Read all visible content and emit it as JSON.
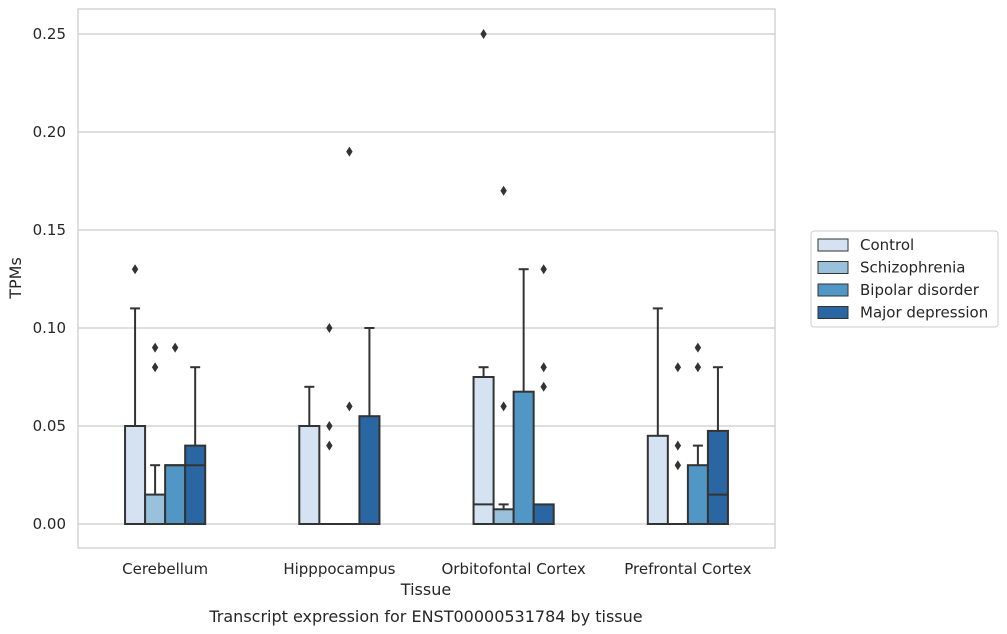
{
  "chart_data": {
    "type": "boxplot",
    "title": "",
    "caption": "Transcript expression for ENST00000531784 by tissue",
    "xlabel": "Tissue",
    "ylabel": "TPMs",
    "ylim": [
      -0.012,
      0.263
    ],
    "yticks": [
      "0.00",
      "0.05",
      "0.10",
      "0.15",
      "0.20",
      "0.25"
    ],
    "grid": "horizontal",
    "legend_placement": "right",
    "categories": [
      "Cerebellum",
      "Hipppocampus",
      "Orbitofontal Cortex",
      "Prefrontal Cortex"
    ],
    "series": [
      {
        "name": "Control",
        "color": "#d4e2f1",
        "boxes": [
          {
            "q1": 0.0,
            "median": 0.0,
            "q3": 0.05,
            "whisker_low": 0.0,
            "whisker_high": 0.11,
            "outliers": [
              0.13
            ]
          },
          {
            "q1": 0.0,
            "median": 0.0,
            "q3": 0.05,
            "whisker_low": 0.0,
            "whisker_high": 0.07,
            "outliers": []
          },
          {
            "q1": 0.0,
            "median": 0.01,
            "q3": 0.075,
            "whisker_low": 0.0,
            "whisker_high": 0.08,
            "outliers": [
              0.25
            ]
          },
          {
            "q1": 0.0,
            "median": 0.0,
            "q3": 0.045,
            "whisker_low": 0.0,
            "whisker_high": 0.11,
            "outliers": []
          }
        ]
      },
      {
        "name": "Schizophrenia",
        "color": "#9ac1dc",
        "boxes": [
          {
            "q1": 0.0,
            "median": 0.0,
            "q3": 0.015,
            "whisker_low": 0.0,
            "whisker_high": 0.03,
            "outliers": [
              0.08,
              0.09
            ]
          },
          {
            "q1": 0.0,
            "median": 0.0,
            "q3": 0.0,
            "whisker_low": 0.0,
            "whisker_high": 0.0,
            "outliers": [
              0.04,
              0.05,
              0.1
            ]
          },
          {
            "q1": 0.0,
            "median": 0.0,
            "q3": 0.0075,
            "whisker_low": 0.0,
            "whisker_high": 0.01,
            "outliers": [
              0.06,
              0.17
            ]
          },
          {
            "q1": 0.0,
            "median": 0.0,
            "q3": 0.0,
            "whisker_low": 0.0,
            "whisker_high": 0.0,
            "outliers": [
              0.03,
              0.04,
              0.08
            ]
          }
        ]
      },
      {
        "name": "Bipolar disorder",
        "color": "#5097c6",
        "boxes": [
          {
            "q1": 0.0,
            "median": 0.03,
            "q3": 0.03,
            "whisker_low": 0.0,
            "whisker_high": 0.03,
            "outliers": [
              0.09
            ]
          },
          {
            "q1": 0.0,
            "median": 0.0,
            "q3": 0.0,
            "whisker_low": 0.0,
            "whisker_high": 0.0,
            "outliers": [
              0.06,
              0.19
            ]
          },
          {
            "q1": 0.0,
            "median": 0.0,
            "q3": 0.0675,
            "whisker_low": 0.0,
            "whisker_high": 0.13,
            "outliers": []
          },
          {
            "q1": 0.0,
            "median": 0.0,
            "q3": 0.03,
            "whisker_low": 0.0,
            "whisker_high": 0.04,
            "outliers": [
              0.08,
              0.09
            ]
          }
        ]
      },
      {
        "name": "Major depression",
        "color": "#2a66a2",
        "boxes": [
          {
            "q1": 0.0,
            "median": 0.03,
            "q3": 0.04,
            "whisker_low": 0.0,
            "whisker_high": 0.08,
            "outliers": []
          },
          {
            "q1": 0.0,
            "median": 0.0,
            "q3": 0.055,
            "whisker_low": 0.0,
            "whisker_high": 0.1,
            "outliers": []
          },
          {
            "q1": 0.0,
            "median": 0.0,
            "q3": 0.01,
            "whisker_low": 0.0,
            "whisker_high": 0.01,
            "outliers": [
              0.07,
              0.08,
              0.13
            ]
          },
          {
            "q1": 0.0,
            "median": 0.015,
            "q3": 0.0475,
            "whisker_low": 0.0,
            "whisker_high": 0.08,
            "outliers": []
          }
        ]
      }
    ]
  }
}
